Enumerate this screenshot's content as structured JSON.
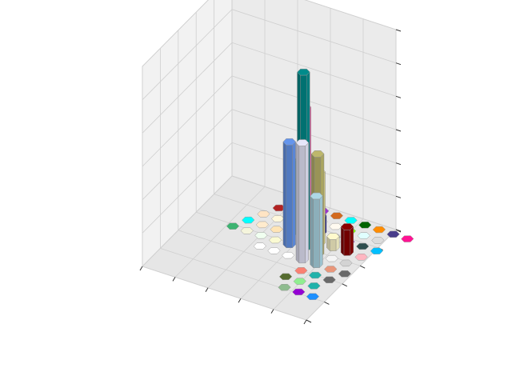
{
  "chart_data": {
    "type": "bar3d-hexagonal",
    "title": "",
    "xlabel": "",
    "ylabel": "",
    "zlabel": "",
    "tick_labels_visible": false,
    "grid": true,
    "legend": "none",
    "axes": {
      "grid_x_cols": 9,
      "grid_y_rows": 9,
      "zlim": [
        0,
        7
      ]
    },
    "bars": [
      {
        "row": 0,
        "col": 0,
        "height": 0,
        "color": "#f0f8ff"
      },
      {
        "row": 0,
        "col": 1,
        "height": 0,
        "color": "#fffacd"
      },
      {
        "row": 0,
        "col": 2,
        "height": 0,
        "color": "#9932cc"
      },
      {
        "row": 0,
        "col": 3,
        "height": 0,
        "color": "#d2691e"
      },
      {
        "row": 0,
        "col": 4,
        "height": 0,
        "color": "#00ffff"
      },
      {
        "row": 0,
        "col": 5,
        "height": 0,
        "color": "#006400"
      },
      {
        "row": 0,
        "col": 6,
        "height": 0,
        "color": "#ff8c00"
      },
      {
        "row": 0,
        "col": 7,
        "height": 0,
        "color": "#483d8b"
      },
      {
        "row": 0,
        "col": 8,
        "height": 0,
        "color": "#ff1493"
      },
      {
        "row": 1,
        "col": 0,
        "height": 0,
        "color": "#b22222"
      },
      {
        "row": 1,
        "col": 1,
        "height": 0,
        "color": "#d3d3d3"
      },
      {
        "row": 1,
        "col": 2,
        "height": 0,
        "color": "#808080"
      },
      {
        "row": 1,
        "col": 3,
        "height": 0,
        "color": "#ffffff"
      },
      {
        "row": 1,
        "col": 4,
        "height": 0,
        "color": "#fffaf0"
      },
      {
        "row": 1,
        "col": 5,
        "height": 0,
        "color": "#7cfc00"
      },
      {
        "row": 1,
        "col": 6,
        "height": 0,
        "color": "#e0ffff"
      },
      {
        "row": 1,
        "col": 7,
        "height": 0,
        "color": "#dcdcdc"
      },
      {
        "row": 2,
        "col": 0,
        "height": 0,
        "color": "#ffe4c4"
      },
      {
        "row": 2,
        "col": 1,
        "height": 0,
        "color": "#fff8dc"
      },
      {
        "row": 2,
        "col": 2,
        "height": 1.2,
        "color": "#a52a2a"
      },
      {
        "row": 2,
        "col": 3,
        "height": 1.4,
        "color": "#ff7f50"
      },
      {
        "row": 2,
        "col": 4,
        "height": 0.6,
        "color": "#00008b"
      },
      {
        "row": 2,
        "col": 5,
        "height": 0,
        "color": "#a9a9a9"
      },
      {
        "row": 2,
        "col": 6,
        "height": 0,
        "color": "#9932cc"
      },
      {
        "row": 2,
        "col": 7,
        "height": 0,
        "color": "#2f4f4f"
      },
      {
        "row": 2,
        "col": 8,
        "height": 0,
        "color": "#00bfff"
      },
      {
        "row": 3,
        "col": 0,
        "height": 0,
        "color": "#00ffff"
      },
      {
        "row": 3,
        "col": 1,
        "height": 0,
        "color": "#ffebcd"
      },
      {
        "row": 3,
        "col": 2,
        "height": 0,
        "color": "#ffe4b5"
      },
      {
        "row": 3,
        "col": 3,
        "height": 2.6,
        "color": "#008000"
      },
      {
        "row": 3,
        "col": 4,
        "height": 4.6,
        "color": "#ff69b4"
      },
      {
        "row": 3,
        "col": 5,
        "height": 2.5,
        "color": "#f0e68c"
      },
      {
        "row": 3,
        "col": 6,
        "height": 0.4,
        "color": "#fffacd"
      },
      {
        "row": 3,
        "col": 7,
        "height": 0.9,
        "color": "#8b0000"
      },
      {
        "row": 3,
        "col": 8,
        "height": 0,
        "color": "#ffb6c1"
      },
      {
        "row": 4,
        "col": 0,
        "height": 0,
        "color": "#3cb371"
      },
      {
        "row": 4,
        "col": 1,
        "height": 0,
        "color": "#f5f5dc"
      },
      {
        "row": 4,
        "col": 2,
        "height": 0,
        "color": "#f0fff0"
      },
      {
        "row": 4,
        "col": 3,
        "height": 0,
        "color": "#fafad2"
      },
      {
        "row": 4,
        "col": 4,
        "height": 3.6,
        "color": "#6495ed"
      },
      {
        "row": 4,
        "col": 5,
        "height": 6.2,
        "color": "#008b8b"
      },
      {
        "row": 4,
        "col": 6,
        "height": 3.5,
        "color": "#bdb76b"
      },
      {
        "row": 4,
        "col": 7,
        "height": 0,
        "color": "#f5f5f5"
      },
      {
        "row": 4,
        "col": 8,
        "height": 0,
        "color": "#d3d3d3"
      },
      {
        "row": 5,
        "col": 3,
        "height": 0,
        "color": "#ffffff"
      },
      {
        "row": 5,
        "col": 4,
        "height": 0,
        "color": "#ffffff"
      },
      {
        "row": 5,
        "col": 5,
        "height": 0,
        "color": "#ffffff"
      },
      {
        "row": 5,
        "col": 6,
        "height": 4.1,
        "color": "#e6e6fa"
      },
      {
        "row": 5,
        "col": 7,
        "height": 2.4,
        "color": "#add8e6"
      },
      {
        "row": 5,
        "col": 8,
        "height": 0,
        "color": "#e9967a"
      },
      {
        "row": 5,
        "col": 9,
        "height": 0,
        "color": "#696969"
      },
      {
        "row": 6,
        "col": 7,
        "height": 0,
        "color": "#fa8072"
      },
      {
        "row": 6,
        "col": 8,
        "height": 0,
        "color": "#20b2aa"
      },
      {
        "row": 6,
        "col": 9,
        "height": 0,
        "color": "#696969"
      },
      {
        "row": 7,
        "col": 7,
        "height": 0,
        "color": "#556b2f"
      },
      {
        "row": 7,
        "col": 8,
        "height": 0,
        "color": "#90ee90"
      },
      {
        "row": 7,
        "col": 9,
        "height": 0,
        "color": "#20b2aa"
      },
      {
        "row": 8,
        "col": 8,
        "height": 0,
        "color": "#8fbc8f"
      },
      {
        "row": 8,
        "col": 9,
        "height": 0,
        "color": "#9400d3"
      },
      {
        "row": 8,
        "col": 10,
        "height": 0,
        "color": "#1e90ff"
      }
    ]
  }
}
